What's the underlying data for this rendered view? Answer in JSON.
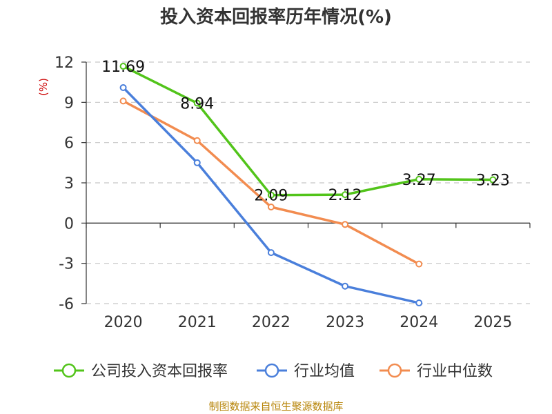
{
  "chart_data": {
    "type": "line",
    "title": "投入资本回报率历年情况(%)",
    "ylabel": "(%)",
    "x": [
      "2020",
      "2021",
      "2022",
      "2023",
      "2024",
      "2025"
    ],
    "ylim": [
      -6,
      12
    ],
    "yticks": [
      -6,
      -3,
      0,
      3,
      6,
      9,
      12
    ],
    "grid": true,
    "legend": "bottom",
    "series": [
      {
        "name": "公司投入资本回报率",
        "color": "#52c41a",
        "values": [
          11.69,
          8.94,
          2.09,
          2.12,
          3.27,
          3.23
        ],
        "labels": [
          "11.69",
          "8.94",
          "2.09",
          "2.12",
          "3.27",
          "3.23"
        ]
      },
      {
        "name": "行业均值",
        "color": "#4a7fdb",
        "values": [
          10.1,
          4.5,
          -2.2,
          -4.7,
          -5.95,
          null
        ]
      },
      {
        "name": "行业中位数",
        "color": "#f28c50",
        "values": [
          9.1,
          6.15,
          1.2,
          -0.1,
          -3.05,
          null
        ]
      }
    ]
  },
  "source": "制图数据来自恒生聚源数据库"
}
